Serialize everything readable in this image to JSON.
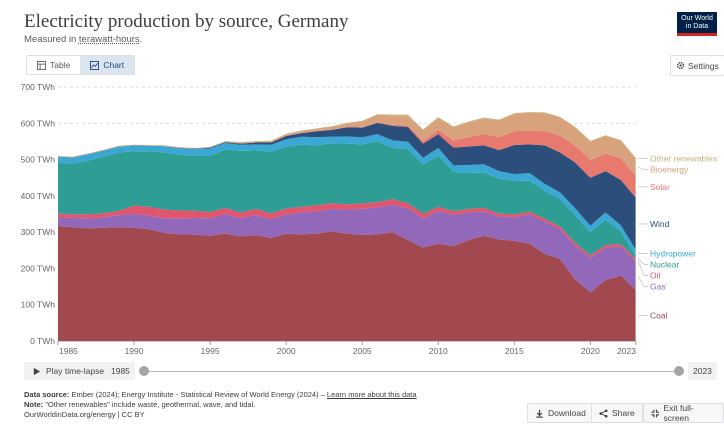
{
  "header": {
    "title": "Electricity production by source, Germany",
    "subtitle_prefix": "Measured in ",
    "subtitle_unit": "terawatt-hours",
    "subtitle_suffix": ".",
    "logo_line1": "Our World",
    "logo_line2": "in Data"
  },
  "tabs": [
    {
      "label": "Table",
      "icon": "table-icon",
      "active": false
    },
    {
      "label": "Chart",
      "icon": "chart-icon",
      "active": true
    }
  ],
  "settings_label": "Settings",
  "timeline": {
    "play_label": "Play time-lapse",
    "start_year": "1985",
    "end_year": "2023"
  },
  "footer": {
    "source_label": "Data source:",
    "source_text": "Ember (2024); Energy Institute - Statistical Review of World Energy (2024) – ",
    "source_link": "Learn more about this data",
    "note_label": "Note:",
    "note_text": "\"Other renewables\" include waste, geothermal, wave, and tidal.",
    "credit": "OurWorldinData.org/energy | CC BY"
  },
  "buttons": {
    "download": "Download",
    "share": "Share",
    "exit": "Exit full-screen"
  },
  "chart_data": {
    "type": "area",
    "stacked": true,
    "title": "Electricity production by source, Germany",
    "ylabel": "",
    "xlabel": "",
    "ylim": [
      0,
      700
    ],
    "y_ticks": [
      0,
      100,
      200,
      300,
      400,
      500,
      600,
      700
    ],
    "y_tick_labels": [
      "0 TWh",
      "100 TWh",
      "200 TWh",
      "300 TWh",
      "400 TWh",
      "500 TWh",
      "600 TWh",
      "700 TWh"
    ],
    "x_ticks": [
      1985,
      1990,
      1995,
      2000,
      2005,
      2010,
      2015,
      2020,
      2023
    ],
    "x_tick_labels": [
      "1985",
      "1990",
      "1995",
      "2000",
      "2005",
      "2010",
      "2015",
      "2020",
      "2023"
    ],
    "grid": "horizontal dashed",
    "legend": "right",
    "x": [
      1985,
      1986,
      1987,
      1988,
      1989,
      1990,
      1991,
      1992,
      1993,
      1994,
      1995,
      1996,
      1997,
      1998,
      1999,
      2000,
      2001,
      2002,
      2003,
      2004,
      2005,
      2006,
      2007,
      2008,
      2009,
      2010,
      2011,
      2012,
      2013,
      2014,
      2015,
      2016,
      2017,
      2018,
      2019,
      2020,
      2021,
      2022,
      2023
    ],
    "series": [
      {
        "name": "Coal",
        "color": "#a2484f",
        "values": [
          316,
          314,
          310,
          312,
          314,
          312,
          308,
          298,
          294,
          293,
          290,
          296,
          288,
          292,
          284,
          296,
          294,
          296,
          302,
          296,
          292,
          294,
          300,
          278,
          258,
          268,
          262,
          278,
          290,
          280,
          276,
          268,
          240,
          226,
          170,
          134,
          168,
          180,
          140
        ]
      },
      {
        "name": "Gas",
        "color": "#9168ba",
        "values": [
          25,
          25,
          28,
          29,
          33,
          38,
          38,
          40,
          44,
          46,
          48,
          54,
          50,
          55,
          52,
          53,
          60,
          62,
          62,
          66,
          72,
          74,
          76,
          87,
          80,
          90,
          86,
          76,
          67,
          63,
          65,
          81,
          89,
          82,
          93,
          95,
          90,
          80,
          78
        ]
      },
      {
        "name": "Oil",
        "color": "#e0566e",
        "values": [
          10,
          10,
          11,
          11,
          12,
          23,
          24,
          24,
          22,
          20,
          18,
          17,
          16,
          17,
          16,
          16,
          16,
          16,
          16,
          15,
          15,
          15,
          15,
          15,
          13,
          12,
          10,
          10,
          10,
          8,
          8,
          8,
          8,
          8,
          8,
          7,
          7,
          7,
          7
        ]
      },
      {
        "name": "Nuclear",
        "color": "#2e9e94",
        "values": [
          140,
          140,
          148,
          156,
          160,
          150,
          153,
          158,
          153,
          151,
          154,
          161,
          170,
          161,
          170,
          170,
          171,
          165,
          165,
          167,
          163,
          167,
          141,
          149,
          135,
          141,
          108,
          99,
          97,
          97,
          92,
          85,
          76,
          76,
          75,
          64,
          69,
          35,
          7
        ]
      },
      {
        "name": "Hydropower",
        "color": "#3aa7d4",
        "values": [
          17,
          17,
          18,
          17,
          17,
          16,
          15,
          17,
          18,
          19,
          21,
          18,
          17,
          17,
          19,
          21,
          22,
          23,
          18,
          20,
          19,
          20,
          21,
          20,
          19,
          21,
          18,
          22,
          23,
          20,
          19,
          21,
          20,
          18,
          20,
          18,
          20,
          17,
          19
        ]
      },
      {
        "name": "Wind",
        "color": "#2b4f7a",
        "values": [
          0,
          0,
          0,
          0,
          0,
          0,
          0,
          0,
          1,
          1,
          2,
          2,
          3,
          5,
          6,
          9,
          10,
          16,
          19,
          25,
          27,
          31,
          40,
          41,
          39,
          38,
          49,
          51,
          52,
          58,
          80,
          79,
          106,
          110,
          126,
          132,
          114,
          125,
          143
        ]
      },
      {
        "name": "Solar",
        "color": "#e8796e",
        "values": [
          0,
          0,
          0,
          0,
          0,
          0,
          0,
          0,
          0,
          0,
          0,
          0,
          0,
          0,
          0,
          0,
          0,
          0,
          1,
          1,
          1,
          2,
          3,
          4,
          7,
          12,
          20,
          26,
          31,
          36,
          38,
          38,
          39,
          46,
          46,
          49,
          48,
          59,
          62
        ]
      },
      {
        "name": "Bioenergy",
        "color": "#d7a27c",
        "values": [
          2,
          2,
          2,
          2,
          2,
          2,
          2,
          2,
          2,
          2,
          2,
          2,
          3,
          3,
          4,
          5,
          6,
          7,
          8,
          9,
          16,
          20,
          26,
          28,
          30,
          33,
          36,
          41,
          44,
          46,
          48,
          49,
          50,
          50,
          50,
          51,
          49,
          49,
          46
        ]
      },
      {
        "name": "Other renewables",
        "color": "#c5b57a",
        "values": [
          0,
          0,
          0,
          0,
          0,
          0,
          0,
          0,
          0,
          0,
          0,
          1,
          1,
          1,
          1,
          1,
          1,
          1,
          1,
          2,
          2,
          2,
          2,
          2,
          2,
          2,
          2,
          2,
          2,
          2,
          2,
          2,
          2,
          2,
          2,
          2,
          2,
          2,
          2
        ]
      }
    ]
  }
}
